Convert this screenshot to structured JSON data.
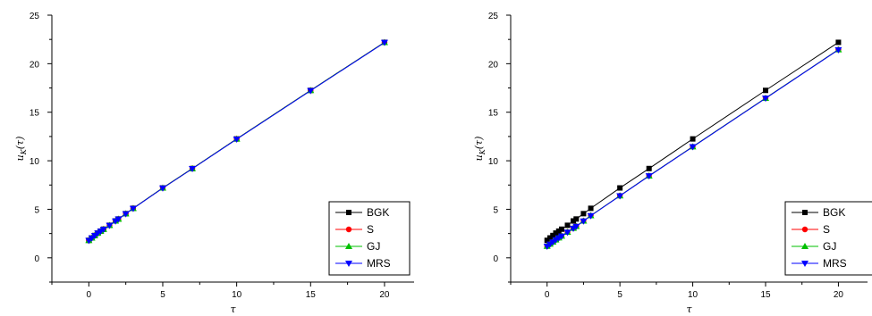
{
  "chart_data": [
    {
      "type": "line",
      "title": "",
      "xlabel": "τ",
      "ylabel": "u_K(τ)",
      "ylabel_parts": {
        "base": "u",
        "sub": "K",
        "arg": "(τ)"
      },
      "xlim": [
        -2.5,
        22
      ],
      "ylim": [
        -2.5,
        25
      ],
      "x_ticks": [
        0,
        5,
        10,
        15,
        20
      ],
      "y_ticks": [
        0,
        5,
        10,
        15,
        20,
        25
      ],
      "grid": false,
      "legend_position": "right",
      "x": [
        0,
        0.2,
        0.4,
        0.6,
        0.8,
        1.0,
        1.4,
        1.8,
        2.0,
        2.5,
        3.0,
        5,
        7,
        10,
        15,
        20
      ],
      "series": [
        {
          "name": "BGK",
          "color": "#000000",
          "marker": "square",
          "values": [
            1.8,
            2.05,
            2.3,
            2.55,
            2.75,
            2.95,
            3.35,
            3.8,
            4.0,
            4.55,
            5.1,
            7.2,
            9.2,
            12.25,
            17.25,
            22.2
          ]
        },
        {
          "name": "S",
          "color": "#ff0000",
          "marker": "circle",
          "values": [
            1.8,
            2.05,
            2.3,
            2.55,
            2.75,
            2.95,
            3.35,
            3.8,
            4.0,
            4.55,
            5.1,
            7.2,
            9.2,
            12.25,
            17.25,
            22.2
          ]
        },
        {
          "name": "GJ",
          "color": "#00c000",
          "marker": "triangle-up",
          "values": [
            1.8,
            2.05,
            2.3,
            2.55,
            2.75,
            2.95,
            3.35,
            3.8,
            4.0,
            4.55,
            5.1,
            7.2,
            9.2,
            12.25,
            17.25,
            22.2
          ]
        },
        {
          "name": "MRS",
          "color": "#0000ff",
          "marker": "triangle-down",
          "values": [
            1.78,
            2.03,
            2.28,
            2.53,
            2.73,
            2.93,
            3.33,
            3.78,
            3.98,
            4.53,
            5.08,
            7.18,
            9.18,
            12.22,
            17.22,
            22.18
          ]
        }
      ]
    },
    {
      "type": "line",
      "title": "",
      "xlabel": "τ",
      "ylabel": "u_K(τ)",
      "ylabel_parts": {
        "base": "u",
        "sub": "K",
        "arg": "(τ)"
      },
      "xlim": [
        -2.5,
        22
      ],
      "ylim": [
        -2.5,
        25
      ],
      "x_ticks": [
        0,
        5,
        10,
        15,
        20
      ],
      "y_ticks": [
        0,
        5,
        10,
        15,
        20,
        25
      ],
      "grid": false,
      "legend_position": "right",
      "x": [
        0,
        0.2,
        0.4,
        0.6,
        0.8,
        1.0,
        1.4,
        1.8,
        2.0,
        2.5,
        3.0,
        5,
        7,
        10,
        15,
        20
      ],
      "series": [
        {
          "name": "BGK",
          "color": "#000000",
          "marker": "square",
          "values": [
            1.8,
            2.05,
            2.3,
            2.55,
            2.75,
            2.95,
            3.35,
            3.8,
            4.0,
            4.55,
            5.1,
            7.2,
            9.2,
            12.25,
            17.25,
            22.2
          ]
        },
        {
          "name": "S",
          "color": "#ff0000",
          "marker": "circle",
          "values": [
            1.2,
            1.42,
            1.64,
            1.86,
            2.06,
            2.25,
            2.65,
            3.05,
            3.25,
            3.8,
            4.35,
            6.4,
            8.45,
            11.45,
            16.45,
            21.45
          ]
        },
        {
          "name": "GJ",
          "color": "#00c000",
          "marker": "triangle-up",
          "values": [
            1.2,
            1.42,
            1.64,
            1.86,
            2.06,
            2.25,
            2.65,
            3.05,
            3.25,
            3.8,
            4.35,
            6.4,
            8.45,
            11.45,
            16.45,
            21.45
          ]
        },
        {
          "name": "MRS",
          "color": "#0000ff",
          "marker": "triangle-down",
          "values": [
            1.18,
            1.4,
            1.62,
            1.84,
            2.04,
            2.23,
            2.63,
            3.03,
            3.23,
            3.78,
            4.33,
            6.38,
            8.43,
            11.43,
            16.43,
            21.43
          ]
        }
      ]
    }
  ]
}
